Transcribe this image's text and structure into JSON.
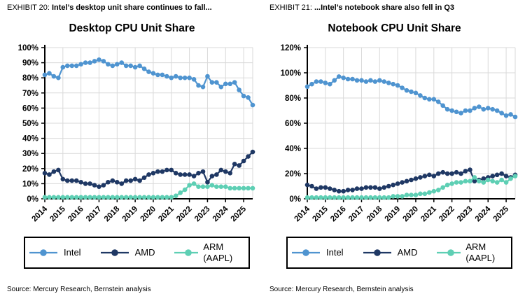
{
  "exhibits": [
    {
      "kicker": "EXHIBIT 20:",
      "headline": "Intel’s desktop unit share continues to fall...",
      "source": "Source: Mercury Research, Bernstein analysis"
    },
    {
      "kicker": "EXHIBIT 21:",
      "headline": "...Intel’s notebook share also fell in Q3",
      "source": "Source: Mercury Research, Bernstein analysis"
    }
  ],
  "colors": {
    "intel": "#4f94d0",
    "amd": "#1f3864",
    "arm": "#5ecfb4",
    "grid": "#d9d9d9",
    "axis": "#000000"
  },
  "chart_data": [
    {
      "type": "line",
      "title": "Desktop CPU Unit Share",
      "x_tick_labels": [
        "2014",
        "2015",
        "2016",
        "2017",
        "2018",
        "2019",
        "2020",
        "2021",
        "2022",
        "2023",
        "2024",
        "2025"
      ],
      "points_per_year": 4,
      "frequency": "quarterly",
      "ylim": [
        0,
        100
      ],
      "ytick_step": 10,
      "ytick_format": "percent",
      "grid": true,
      "legend_position": "bottom",
      "series": [
        {
          "name": "Intel",
          "color_key": "intel",
          "values": [
            82,
            83,
            81,
            80,
            87,
            88,
            88,
            88,
            89,
            90,
            90,
            91,
            92,
            91,
            89,
            88,
            89,
            90,
            88,
            88,
            87,
            88,
            86,
            84,
            83,
            82,
            82,
            81,
            80,
            81,
            80,
            80,
            80,
            79,
            75,
            74,
            81,
            77,
            77,
            74,
            76,
            76,
            77,
            72,
            68,
            67,
            62
          ]
        },
        {
          "name": "AMD",
          "color_key": "amd",
          "values": [
            17,
            16,
            18,
            19,
            13,
            12,
            12,
            12,
            11,
            10,
            10,
            9,
            8,
            9,
            11,
            12,
            11,
            10,
            12,
            12,
            13,
            12,
            14,
            16,
            17,
            18,
            18,
            19,
            19,
            17,
            16,
            16,
            16,
            15,
            17,
            18,
            11,
            15,
            16,
            19,
            18,
            17,
            23,
            22,
            25,
            28,
            31
          ]
        },
        {
          "name": "ARM (AAPL)",
          "color_key": "arm",
          "values": [
            1,
            1,
            1,
            1,
            1,
            1,
            1,
            1,
            1,
            1,
            1,
            1,
            1,
            1,
            1,
            1,
            1,
            1,
            1,
            1,
            1,
            1,
            1,
            1,
            1,
            1,
            1,
            1,
            1,
            2,
            4,
            6,
            9,
            10,
            8,
            8,
            8,
            9,
            8,
            8,
            8,
            7,
            7,
            7,
            7,
            7,
            7
          ]
        }
      ]
    },
    {
      "type": "line",
      "title": "Notebook CPU Unit Share",
      "x_tick_labels": [
        "2014",
        "2015",
        "2016",
        "2017",
        "2018",
        "2019",
        "2020",
        "2021",
        "2022",
        "2023",
        "2024",
        "2025"
      ],
      "points_per_year": 4,
      "frequency": "quarterly",
      "ylim": [
        0,
        120
      ],
      "ytick_step": 20,
      "ytick_format": "percent",
      "grid": true,
      "legend_position": "bottom",
      "series": [
        {
          "name": "Intel",
          "color_key": "intel",
          "values": [
            89,
            91,
            93,
            93,
            92,
            91,
            94,
            97,
            96,
            95,
            95,
            94,
            94,
            93,
            94,
            93,
            94,
            93,
            92,
            91,
            90,
            88,
            86,
            85,
            84,
            82,
            80,
            79,
            79,
            77,
            74,
            71,
            70,
            69,
            68,
            70,
            70,
            72,
            73,
            71,
            72,
            71,
            70,
            68,
            66,
            67,
            65
          ]
        },
        {
          "name": "AMD",
          "color_key": "amd",
          "values": [
            11,
            10,
            8,
            9,
            9,
            8,
            7,
            6,
            6,
            7,
            7,
            8,
            8,
            9,
            9,
            9,
            8,
            9,
            10,
            11,
            12,
            13,
            14,
            15,
            16,
            17,
            18,
            19,
            18,
            20,
            21,
            20,
            20,
            21,
            20,
            22,
            23,
            14,
            15,
            16,
            17,
            18,
            19,
            20,
            18,
            17,
            19
          ]
        },
        {
          "name": "ARM (AAPL)",
          "color_key": "arm",
          "values": [
            1,
            1,
            1,
            1,
            1,
            1,
            1,
            1,
            1,
            1,
            1,
            1,
            1,
            1,
            1,
            1,
            1,
            1,
            1,
            2,
            2,
            2,
            3,
            3,
            3,
            4,
            4,
            5,
            6,
            7,
            9,
            11,
            12,
            13,
            13,
            14,
            14,
            17,
            14,
            13,
            15,
            14,
            13,
            15,
            13,
            16,
            18
          ]
        }
      ]
    }
  ]
}
